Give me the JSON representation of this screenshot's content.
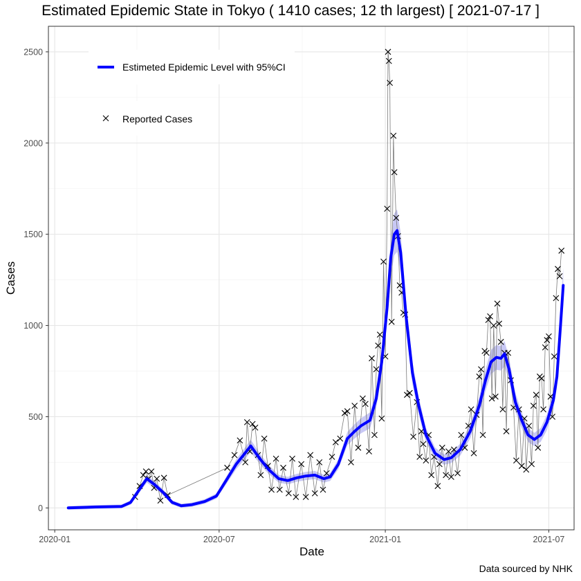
{
  "chart_data": {
    "type": "line",
    "title": "Estimated Epidemic State in Tokyo  ( 1410 cases; 12 th largest) [ 2021-07-17 ]",
    "xlabel": "Date",
    "ylabel": "Cases",
    "caption": "Data sourced by NHK",
    "x_ticks": [
      "2020-01",
      "2020-07",
      "2021-01",
      "2021-07"
    ],
    "y_ticks": [
      0,
      500,
      1000,
      1500,
      2000,
      2500
    ],
    "xlim": [
      "2019-12-25",
      "2021-07-29"
    ],
    "ylim": [
      -120,
      2640
    ],
    "grid": true,
    "legend_position": "top-left",
    "series": [
      {
        "name": "Estimeted Epidemic Level with 95%CI",
        "style": "line",
        "color": "#0000ff",
        "band_color": "#c8c8f5",
        "points": [
          [
            "2020-01-16",
            0
          ],
          [
            "2020-02-15",
            5
          ],
          [
            "2020-03-15",
            8
          ],
          [
            "2020-03-25",
            30
          ],
          [
            "2020-04-05",
            110
          ],
          [
            "2020-04-12",
            160
          ],
          [
            "2020-04-20",
            130
          ],
          [
            "2020-04-30",
            85
          ],
          [
            "2020-05-10",
            30
          ],
          [
            "2020-05-20",
            12
          ],
          [
            "2020-06-01",
            18
          ],
          [
            "2020-06-15",
            35
          ],
          [
            "2020-06-28",
            65
          ],
          [
            "2020-07-10",
            160
          ],
          [
            "2020-07-20",
            240
          ],
          [
            "2020-07-28",
            290
          ],
          [
            "2020-08-05",
            340
          ],
          [
            "2020-08-15",
            270
          ],
          [
            "2020-08-25",
            210
          ],
          [
            "2020-09-05",
            160
          ],
          [
            "2020-09-15",
            150
          ],
          [
            "2020-09-25",
            165
          ],
          [
            "2020-10-05",
            175
          ],
          [
            "2020-10-15",
            180
          ],
          [
            "2020-10-25",
            160
          ],
          [
            "2020-11-01",
            170
          ],
          [
            "2020-11-10",
            240
          ],
          [
            "2020-11-20",
            380
          ],
          [
            "2020-11-28",
            420
          ],
          [
            "2020-12-05",
            450
          ],
          [
            "2020-12-15",
            480
          ],
          [
            "2020-12-22",
            600
          ],
          [
            "2020-12-28",
            800
          ],
          [
            "2021-01-03",
            1100
          ],
          [
            "2021-01-07",
            1370
          ],
          [
            "2021-01-11",
            1500
          ],
          [
            "2021-01-14",
            1520
          ],
          [
            "2021-01-18",
            1400
          ],
          [
            "2021-01-24",
            1050
          ],
          [
            "2021-01-31",
            740
          ],
          [
            "2021-02-07",
            560
          ],
          [
            "2021-02-15",
            400
          ],
          [
            "2021-02-25",
            300
          ],
          [
            "2021-03-07",
            265
          ],
          [
            "2021-03-15",
            275
          ],
          [
            "2021-03-25",
            320
          ],
          [
            "2021-04-05",
            420
          ],
          [
            "2021-04-15",
            560
          ],
          [
            "2021-04-22",
            700
          ],
          [
            "2021-04-28",
            800
          ],
          [
            "2021-05-04",
            825
          ],
          [
            "2021-05-09",
            820
          ],
          [
            "2021-05-13",
            845
          ],
          [
            "2021-05-18",
            760
          ],
          [
            "2021-05-25",
            580
          ],
          [
            "2021-06-01",
            480
          ],
          [
            "2021-06-08",
            400
          ],
          [
            "2021-06-15",
            375
          ],
          [
            "2021-06-22",
            400
          ],
          [
            "2021-06-29",
            470
          ],
          [
            "2021-07-06",
            590
          ],
          [
            "2021-07-10",
            720
          ],
          [
            "2021-07-14",
            1000
          ],
          [
            "2021-07-17",
            1220
          ]
        ]
      },
      {
        "name": "Reported Cases",
        "style": "marker-x",
        "color": "#000000",
        "points": [
          [
            "2020-03-30",
            60
          ],
          [
            "2020-04-04",
            120
          ],
          [
            "2020-04-08",
            180
          ],
          [
            "2020-04-11",
            200
          ],
          [
            "2020-04-14",
            160
          ],
          [
            "2020-04-17",
            200
          ],
          [
            "2020-04-20",
            110
          ],
          [
            "2020-04-23",
            160
          ],
          [
            "2020-04-27",
            40
          ],
          [
            "2020-05-01",
            165
          ],
          [
            "2020-05-05",
            70
          ],
          [
            "2020-07-10",
            220
          ],
          [
            "2020-07-18",
            290
          ],
          [
            "2020-07-24",
            370
          ],
          [
            "2020-07-30",
            250
          ],
          [
            "2020-08-01",
            470
          ],
          [
            "2020-08-04",
            310
          ],
          [
            "2020-08-07",
            460
          ],
          [
            "2020-08-10",
            440
          ],
          [
            "2020-08-13",
            290
          ],
          [
            "2020-08-16",
            180
          ],
          [
            "2020-08-20",
            380
          ],
          [
            "2020-08-24",
            230
          ],
          [
            "2020-08-28",
            100
          ],
          [
            "2020-09-02",
            270
          ],
          [
            "2020-09-06",
            100
          ],
          [
            "2020-09-10",
            220
          ],
          [
            "2020-09-16",
            80
          ],
          [
            "2020-09-20",
            270
          ],
          [
            "2020-09-24",
            60
          ],
          [
            "2020-09-30",
            240
          ],
          [
            "2020-10-05",
            60
          ],
          [
            "2020-10-10",
            290
          ],
          [
            "2020-10-15",
            80
          ],
          [
            "2020-10-20",
            250
          ],
          [
            "2020-10-24",
            100
          ],
          [
            "2020-10-28",
            190
          ],
          [
            "2020-11-03",
            280
          ],
          [
            "2020-11-07",
            360
          ],
          [
            "2020-11-12",
            380
          ],
          [
            "2020-11-17",
            520
          ],
          [
            "2020-11-20",
            530
          ],
          [
            "2020-11-24",
            250
          ],
          [
            "2020-11-28",
            560
          ],
          [
            "2020-12-02",
            330
          ],
          [
            "2020-12-07",
            600
          ],
          [
            "2020-12-10",
            570
          ],
          [
            "2020-12-14",
            310
          ],
          [
            "2020-12-17",
            820
          ],
          [
            "2020-12-20",
            400
          ],
          [
            "2020-12-22",
            760
          ],
          [
            "2020-12-24",
            890
          ],
          [
            "2020-12-26",
            950
          ],
          [
            "2020-12-28",
            490
          ],
          [
            "2020-12-30",
            1350
          ],
          [
            "2021-01-01",
            830
          ],
          [
            "2021-01-03",
            1640
          ],
          [
            "2021-01-04",
            2500
          ],
          [
            "2021-01-05",
            2450
          ],
          [
            "2021-01-06",
            2330
          ],
          [
            "2021-01-08",
            1020
          ],
          [
            "2021-01-10",
            2040
          ],
          [
            "2021-01-11",
            1840
          ],
          [
            "2021-01-13",
            1590
          ],
          [
            "2021-01-15",
            1490
          ],
          [
            "2021-01-17",
            1220
          ],
          [
            "2021-01-19",
            1180
          ],
          [
            "2021-01-21",
            1070
          ],
          [
            "2021-01-23",
            1060
          ],
          [
            "2021-01-25",
            620
          ],
          [
            "2021-01-28",
            630
          ],
          [
            "2021-02-01",
            390
          ],
          [
            "2021-02-05",
            580
          ],
          [
            "2021-02-08",
            280
          ],
          [
            "2021-02-10",
            420
          ],
          [
            "2021-02-12",
            350
          ],
          [
            "2021-02-15",
            260
          ],
          [
            "2021-02-18",
            400
          ],
          [
            "2021-02-21",
            180
          ],
          [
            "2021-02-24",
            280
          ],
          [
            "2021-02-28",
            120
          ],
          [
            "2021-03-02",
            240
          ],
          [
            "2021-03-05",
            330
          ],
          [
            "2021-03-09",
            180
          ],
          [
            "2021-03-12",
            310
          ],
          [
            "2021-03-15",
            170
          ],
          [
            "2021-03-18",
            320
          ],
          [
            "2021-03-22",
            190
          ],
          [
            "2021-03-26",
            400
          ],
          [
            "2021-03-30",
            330
          ],
          [
            "2021-04-03",
            450
          ],
          [
            "2021-04-06",
            540
          ],
          [
            "2021-04-09",
            300
          ],
          [
            "2021-04-12",
            510
          ],
          [
            "2021-04-15",
            720
          ],
          [
            "2021-04-17",
            760
          ],
          [
            "2021-04-19",
            400
          ],
          [
            "2021-04-21",
            860
          ],
          [
            "2021-04-23",
            850
          ],
          [
            "2021-04-25",
            1030
          ],
          [
            "2021-04-27",
            1050
          ],
          [
            "2021-04-29",
            600
          ],
          [
            "2021-05-01",
            1000
          ],
          [
            "2021-05-03",
            610
          ],
          [
            "2021-05-05",
            1120
          ],
          [
            "2021-05-07",
            1010
          ],
          [
            "2021-05-09",
            910
          ],
          [
            "2021-05-11",
            540
          ],
          [
            "2021-05-13",
            850
          ],
          [
            "2021-05-15",
            420
          ],
          [
            "2021-05-17",
            850
          ],
          [
            "2021-05-20",
            700
          ],
          [
            "2021-05-23",
            550
          ],
          [
            "2021-05-26",
            260
          ],
          [
            "2021-05-29",
            540
          ],
          [
            "2021-06-01",
            230
          ],
          [
            "2021-06-04",
            490
          ],
          [
            "2021-06-06",
            210
          ],
          [
            "2021-06-09",
            450
          ],
          [
            "2021-06-12",
            240
          ],
          [
            "2021-06-14",
            560
          ],
          [
            "2021-06-17",
            620
          ],
          [
            "2021-06-19",
            330
          ],
          [
            "2021-06-21",
            720
          ],
          [
            "2021-06-23",
            710
          ],
          [
            "2021-06-25",
            540
          ],
          [
            "2021-06-27",
            880
          ],
          [
            "2021-06-29",
            920
          ],
          [
            "2021-07-01",
            940
          ],
          [
            "2021-07-03",
            610
          ],
          [
            "2021-07-05",
            500
          ],
          [
            "2021-07-07",
            830
          ],
          [
            "2021-07-09",
            1150
          ],
          [
            "2021-07-11",
            1310
          ],
          [
            "2021-07-13",
            1270
          ],
          [
            "2021-07-15",
            1410
          ]
        ]
      }
    ]
  }
}
